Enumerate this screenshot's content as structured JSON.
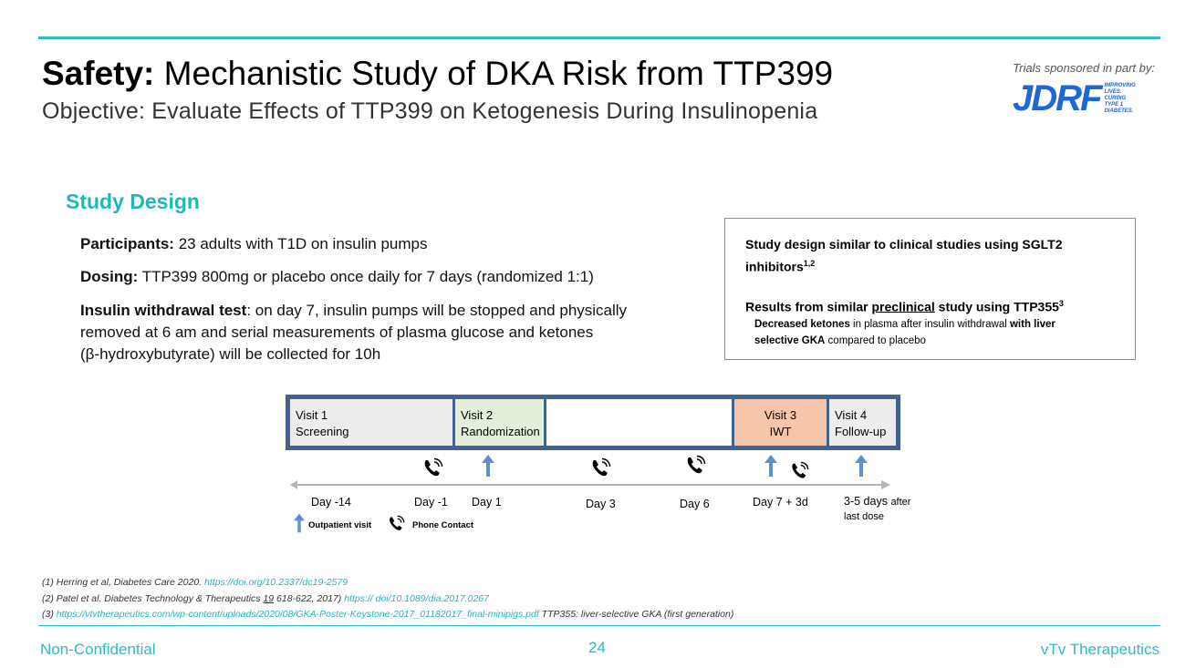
{
  "header": {
    "title_bold": "Safety:",
    "title_rest": "Mechanistic Study of DKA Risk from TTP399",
    "subtitle": "Objective: Evaluate Effects of TTP399 on Ketogenesis During Insulinopenia",
    "sponsor_label": "Trials sponsored in part by:",
    "sponsor_logo_text": "JDRF",
    "sponsor_tagline": "IMPROVING LIVES. CURING TYPE 1 DIABETES."
  },
  "study_design": {
    "heading": "Study Design",
    "participants_label": "Participants:",
    "participants_text": "23 adults with T1D on insulin pumps",
    "dosing_label": "Dosing:",
    "dosing_text": "TTP399 800mg or placebo once daily for 7 days (randomized 1:1)",
    "iwt_label": "Insulin withdrawal test",
    "iwt_text_1": ": on day 7,  insulin pumps will be stopped and physically",
    "iwt_text_2": "removed at 6 am and serial measurements of plasma glucose and ketones",
    "iwt_text_3": "(β-hydroxybutyrate) will be collected for 10h"
  },
  "note_box": {
    "line1": "Study design similar to clinical studies using SGLT2",
    "line2": "inhibitors",
    "line2_sup": "1,2",
    "line3_pre": "Results from similar ",
    "line3_underlined": "preclinical",
    "line3_post": " study using TTP355",
    "line3_sup": "3",
    "sub1_bold": "Decreased ketones",
    "sub1_rest": " in plasma after insulin withdrawal ",
    "sub1_bold2": "with liver",
    "sub2_bold": "selective GKA",
    "sub2_rest": " compared to placebo"
  },
  "timeline": {
    "visits": [
      {
        "line1": "Visit 1",
        "line2": "Screening"
      },
      {
        "line1": "Visit 2",
        "line2": "Randomization"
      },
      {
        "line1": "",
        "line2": ""
      },
      {
        "line1": "Visit 3",
        "line2": "IWT"
      },
      {
        "line1": "Visit 4",
        "line2": "Follow-up"
      }
    ],
    "days": [
      "Day -14",
      "Day -1",
      "Day 1",
      "Day 3",
      "Day 6",
      "Day 7 + 3d",
      "3-5 days",
      "after",
      "last dose"
    ],
    "legend_outpatient": "Outpatient visit",
    "legend_phone": "Phone Contact",
    "colors": {
      "frame": "#41638e",
      "screening": "#ededed",
      "randomization": "#e3efda",
      "blank": "#ffffff",
      "iwt": "#f6c6aa",
      "followup": "#ededed",
      "arrow": "#5b8fd0"
    }
  },
  "references": {
    "r1_text": "(1) Herring et al, Diabetes Care 2020.",
    "r1_link": "https://doi.org/10.2337/dc19-2579",
    "r2_text_a": "(2) Patel et al. Diabetes Technology & Therapeutics ",
    "r2_vol": "19",
    "r2_text_b": " 618-622, 2017)",
    "r2_link": "https:// doi/10.1089/dia.2017.0267",
    "r3_prefix": "(3) ",
    "r3_link": "https://vtvtherapeutics.com/wp-content/uploads/2020/08/GKA-Poster-Keystone-2017_01182017_final-minipigs.pdf",
    "r3_text": " TTP355: liver-selective GKA (first generation)"
  },
  "footer": {
    "left": "Non-Confidential",
    "page": "24",
    "right": "vTv Therapeutics"
  }
}
